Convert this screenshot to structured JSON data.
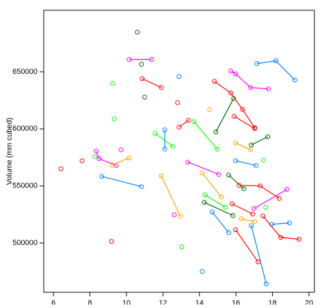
{
  "chart_data": {
    "type": "scatter",
    "ylabel": "Volume (mm cubed)",
    "xlim": [
      5.47,
      20.3
    ],
    "ylim": [
      456900,
      703900
    ],
    "xticks": [
      6,
      8,
      10,
      12,
      14,
      16,
      18,
      20
    ],
    "yticks": [
      500000,
      550000,
      600000,
      650000
    ],
    "series": [
      {
        "color": "#0080ff",
        "x": [
          8.65,
          10.82
        ],
        "values": [
          558400,
          549400
        ]
      },
      {
        "color": "#0080ff",
        "x": [
          12.88
        ],
        "values": [
          645800
        ]
      },
      {
        "color": "#0080ff",
        "x": [
          17.14,
          18.19,
          19.23
        ],
        "values": [
          657200,
          659600,
          642800
        ]
      },
      {
        "color": "#0080ff",
        "x": [
          14.7,
          15.6
        ],
        "values": [
          527200,
          509200
        ]
      },
      {
        "color": "#0080ff",
        "x": [
          16.84,
          17.66
        ],
        "values": [
          515200,
          464300
        ]
      },
      {
        "color": "#0080ff",
        "x": [
          17.96,
          18.93
        ],
        "values": [
          516400,
          517600
        ]
      },
      {
        "color": "#0080ff",
        "x": [
          15.98,
          17.1
        ],
        "values": [
          572100,
          567900
        ]
      },
      {
        "color": "#0080ff",
        "x": [
          12.1,
          12.1
        ],
        "values": [
          599100,
          582300
        ]
      },
      {
        "color": "#0080ff",
        "x": [
          14.15
        ],
        "values": [
          475100
        ]
      },
      {
        "color": "#ff00ff",
        "x": [
          10.15,
          11.38
        ],
        "values": [
          660800,
          660800
        ]
      },
      {
        "color": "#ff00ff",
        "x": [
          13.36,
          15.05
        ],
        "values": [
          570900,
          560200
        ]
      },
      {
        "color": "#ff00ff",
        "x": [
          15.72,
          15.98,
          16.8,
          17.78
        ],
        "values": [
          650600,
          648200,
          636200,
          635000
        ]
      },
      {
        "color": "#ff00ff",
        "x": [
          8.35,
          8.5,
          9.44
        ],
        "values": [
          580500,
          573900,
          567900
        ]
      },
      {
        "color": "#ff00ff",
        "x": [
          9.7
        ],
        "values": [
          581700
        ]
      },
      {
        "color": "#ff00ff",
        "x": [
          12.62
        ],
        "values": [
          524800
        ]
      },
      {
        "color": "#ff00ff",
        "x": [
          16.99,
          18.79
        ],
        "values": [
          530200,
          547000
        ]
      },
      {
        "color": "#006400",
        "x": [
          14.26,
          15.83
        ],
        "values": [
          535600,
          524200
        ]
      },
      {
        "color": "#006400",
        "x": [
          14.9,
          15.87
        ],
        "values": [
          597300,
          626600
        ]
      },
      {
        "color": "#006400",
        "x": [
          16.84,
          17.74
        ],
        "values": [
          585900,
          593100
        ]
      },
      {
        "color": "#006400",
        "x": [
          10.6
        ],
        "values": [
          684700
        ]
      },
      {
        "color": "#006400",
        "x": [
          10.82
        ],
        "values": [
          656600
        ]
      },
      {
        "color": "#006400",
        "x": [
          11.0
        ],
        "values": [
          627800
        ]
      },
      {
        "color": "#006400",
        "x": [
          15.6,
          16.43
        ],
        "values": [
          559600,
          547600
        ]
      },
      {
        "color": "#ff0000",
        "x": [
          10.86,
          11.91
        ],
        "values": [
          644000,
          636200
        ]
      },
      {
        "color": "#ff0000",
        "x": [
          12.88,
          13.4
        ],
        "values": [
          601500,
          607500
        ]
      },
      {
        "color": "#ff0000",
        "x": [
          14.82,
          15.72,
          16.36,
          17.03
        ],
        "values": [
          641600,
          631400,
          617000,
          600900
        ]
      },
      {
        "color": "#ff0000",
        "x": [
          15.9,
          17.03
        ],
        "values": [
          611000,
          600300
        ]
      },
      {
        "color": "#ff0000",
        "x": [
          15.98,
          17.21
        ],
        "values": [
          511600,
          483500
        ]
      },
      {
        "color": "#ff0000",
        "x": [
          17.48,
          18.45,
          19.46
        ],
        "values": [
          523600,
          505000,
          503300
        ]
      },
      {
        "color": "#ff0000",
        "x": [
          6.41
        ],
        "values": [
          565000
        ]
      },
      {
        "color": "#ff0000",
        "x": [
          7.57
        ],
        "values": [
          572100
        ]
      },
      {
        "color": "#ff0000",
        "x": [
          9.18
        ],
        "values": [
          501400
        ]
      },
      {
        "color": "#ff0000",
        "x": [
          12.8
        ],
        "values": [
          623000
        ]
      },
      {
        "color": "#ff0000",
        "x": [
          16.17,
          17.33,
          18.37
        ],
        "values": [
          550600,
          550000,
          539200
        ]
      },
      {
        "color": "#ff0000",
        "x": [
          15.79,
          16.92
        ],
        "values": [
          534400,
          525400
        ]
      },
      {
        "color": "#ffa500",
        "x": [
          11.91,
          12.95
        ],
        "values": [
          558800,
          523600
        ]
      },
      {
        "color": "#ffa500",
        "x": [
          9.21,
          10.15
        ],
        "values": [
          568500,
          574500
        ]
      },
      {
        "color": "#ffa500",
        "x": [
          14.15,
          15.2
        ],
        "values": [
          561400,
          540400
        ]
      },
      {
        "color": "#ffa500",
        "x": [
          15.98,
          16.8
        ],
        "values": [
          587700,
          581700
        ]
      },
      {
        "color": "#ffa500",
        "x": [
          14.56
        ],
        "values": [
          617000
        ]
      },
      {
        "color": "#ffa500",
        "x": [
          16.29,
          17.03
        ],
        "values": [
          521200,
          518800
        ]
      },
      {
        "color": "#00ff00",
        "x": [
          11.57,
          12.54
        ],
        "values": [
          596100,
          584700
        ]
      },
      {
        "color": "#00ff00",
        "x": [
          13.7,
          14.97
        ],
        "values": [
          606300,
          582300
        ]
      },
      {
        "color": "#00ff00",
        "x": [
          9.25
        ],
        "values": [
          639800
        ]
      },
      {
        "color": "#00ff00",
        "x": [
          9.33
        ],
        "values": [
          608700
        ]
      },
      {
        "color": "#00ff00",
        "x": [
          8.28
        ],
        "values": [
          575700
        ]
      },
      {
        "color": "#00ff00",
        "x": [
          13.03
        ],
        "values": [
          496700
        ]
      },
      {
        "color": "#00ff00",
        "x": [
          14.3,
          15.42
        ],
        "values": [
          542200,
          531400
        ]
      },
      {
        "color": "#00ff00",
        "x": [
          17.51
        ],
        "values": [
          572700
        ]
      },
      {
        "color": "#00ff00",
        "x": [
          17.63
        ],
        "values": [
          531400
        ]
      }
    ]
  }
}
